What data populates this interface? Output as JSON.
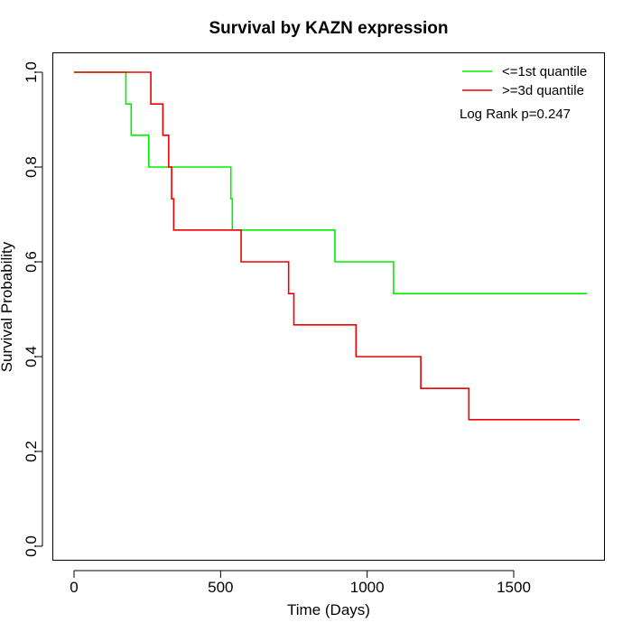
{
  "chart_data": {
    "type": "line",
    "subtype": "kaplan-meier-step",
    "title": "Survival by KAZN expression",
    "xlabel": "Time (Days)",
    "ylabel": "Survival Probability",
    "xlim": [
      0,
      1800
    ],
    "ylim": [
      0,
      1
    ],
    "xticks": [
      0,
      500,
      1000,
      1500
    ],
    "yticks": [
      0.0,
      0.2,
      0.4,
      0.6,
      0.8,
      1.0
    ],
    "xtick_labels": [
      "0",
      "500",
      "1000",
      "1500"
    ],
    "ytick_labels": [
      "0.0",
      "0.2",
      "0.4",
      "0.6",
      "0.8",
      "1.0"
    ],
    "grid": false,
    "legend_position": "top-right",
    "annotation": "Log Rank p=0.247",
    "series": [
      {
        "name": "<=1st quantile",
        "color": "#00ee00",
        "x": [
          0,
          177,
          195,
          255,
          535,
          540,
          890,
          1090,
          1750
        ],
        "y": [
          1.0,
          0.933,
          0.867,
          0.8,
          0.733,
          0.667,
          0.6,
          0.533,
          0.533
        ]
      },
      {
        "name": ">=3d quantile",
        "color": "#ee0000",
        "x": [
          0,
          262,
          303,
          323,
          333,
          340,
          570,
          732,
          750,
          962,
          1183,
          1347,
          1725
        ],
        "y": [
          1.0,
          0.933,
          0.867,
          0.8,
          0.733,
          0.667,
          0.6,
          0.533,
          0.467,
          0.4,
          0.333,
          0.267,
          0.267
        ]
      }
    ]
  }
}
